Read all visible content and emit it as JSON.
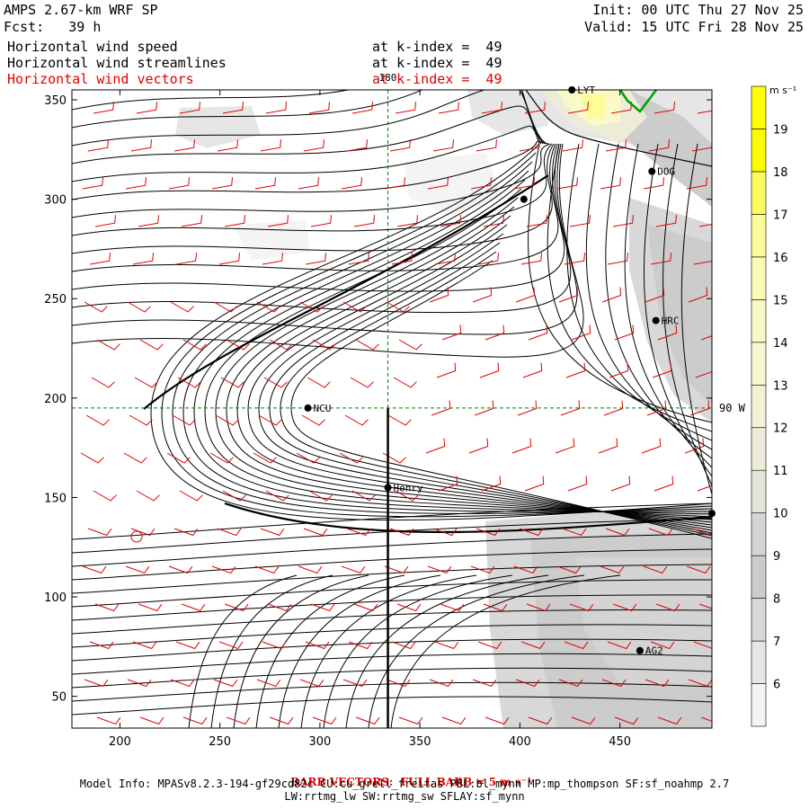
{
  "header": {
    "title": "AMPS 2.67-km WRF SP",
    "forecast": "Fcst:   39 h",
    "init": "Init: 00 UTC Thu 27 Nov 25",
    "valid": "Valid: 15 UTC Fri 28 Nov 25",
    "fields": [
      {
        "label": "Horizontal wind speed",
        "level": "at k-index =  49",
        "color": "#000000"
      },
      {
        "label": "Horizontal wind streamlines",
        "level": "at k-index =  49",
        "color": "#000000"
      },
      {
        "label": "Horizontal wind vectors",
        "level": "at k-index =  49",
        "color": "#e00000"
      }
    ]
  },
  "chart_data": {
    "type": "heatmap",
    "title": "Horizontal wind speed",
    "xlim": [
      176,
      496
    ],
    "ylim": [
      34,
      355
    ],
    "xticks": [
      200,
      250,
      300,
      350,
      400,
      450
    ],
    "yticks": [
      50,
      100,
      150,
      200,
      250,
      300,
      350
    ],
    "colorbar": {
      "unit": "m s⁻¹",
      "levels": [
        6,
        7,
        8,
        9,
        10,
        11,
        12,
        13,
        14,
        15,
        16,
        17,
        18,
        19
      ],
      "colors": [
        "#f4f4f4",
        "#e6e6e6",
        "#d8d8d8",
        "#cccccc",
        "#d4d4d4",
        "#e4e4d8",
        "#ececd8",
        "#f2f2d8",
        "#f8f8d0",
        "#fafac8",
        "#fcfcb8",
        "#fcfc98",
        "#fcfc60",
        "#fcfc00",
        "#ffff00"
      ]
    },
    "gridlines": [
      {
        "label": "180",
        "axis": "x",
        "value": 334
      },
      {
        "label": "90 W",
        "axis": "y",
        "value": 195
      }
    ],
    "stations": [
      {
        "name": "LYT",
        "x": 426,
        "y": 355
      },
      {
        "name": "DOG",
        "x": 466,
        "y": 314
      },
      {
        "name": "",
        "x": 402,
        "y": 300
      },
      {
        "name": "HRC",
        "x": 468,
        "y": 239
      },
      {
        "name": "NCU",
        "x": 294,
        "y": 195
      },
      {
        "name": "Henry",
        "x": 334,
        "y": 155
      },
      {
        "name": "",
        "x": 496,
        "y": 142
      },
      {
        "name": "AG2",
        "x": 460,
        "y": 73
      }
    ],
    "barb_scale": "BARB VECTORS:  FULL BARB = 5 m s⁻¹"
  },
  "footer": {
    "line1": "Model Info: MPASv8.2.3-194-gf29cd82c CU:cu_grell_freitas PBL:bl_mynn MP:mp_thompson SF:sf_noahmp 2.7",
    "line2": "LW:rrtmg_lw SW:rrtmg_sw SFLAY:sf_mynn"
  }
}
